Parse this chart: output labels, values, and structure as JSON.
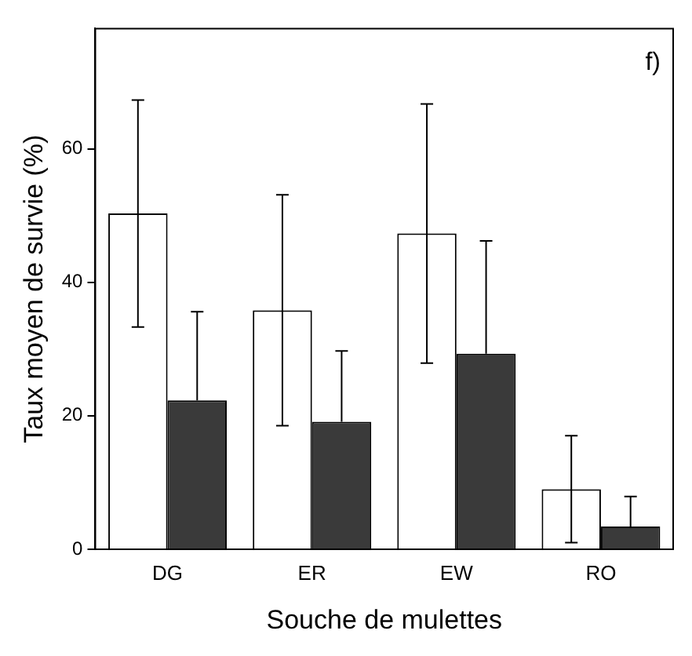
{
  "chart_data": {
    "type": "bar",
    "xlabel": "Souche de mulettes",
    "ylabel": "Taux moyen de survie (%)",
    "annotations": [
      "f)"
    ],
    "categories": [
      "DG",
      "ER",
      "EW",
      "RO"
    ],
    "series": [
      {
        "color": "#ffffff",
        "values": [
          50.3,
          35.8,
          47.3,
          9.0
        ],
        "errors": [
          17,
          17.3,
          19.4,
          8
        ]
      },
      {
        "color": "#3a3a3a",
        "values": [
          22.3,
          19.1,
          29.3,
          3.4
        ],
        "errors": [
          [
            22.3,
            35.6
          ],
          [
            19.1,
            29.7
          ],
          [
            29.3,
            46.2
          ],
          [
            3.4,
            7.9
          ]
        ]
      }
    ],
    "ylim": [
      0,
      78
    ],
    "yticks": [
      0,
      20,
      40,
      60
    ],
    "grid": false,
    "legend": false
  }
}
